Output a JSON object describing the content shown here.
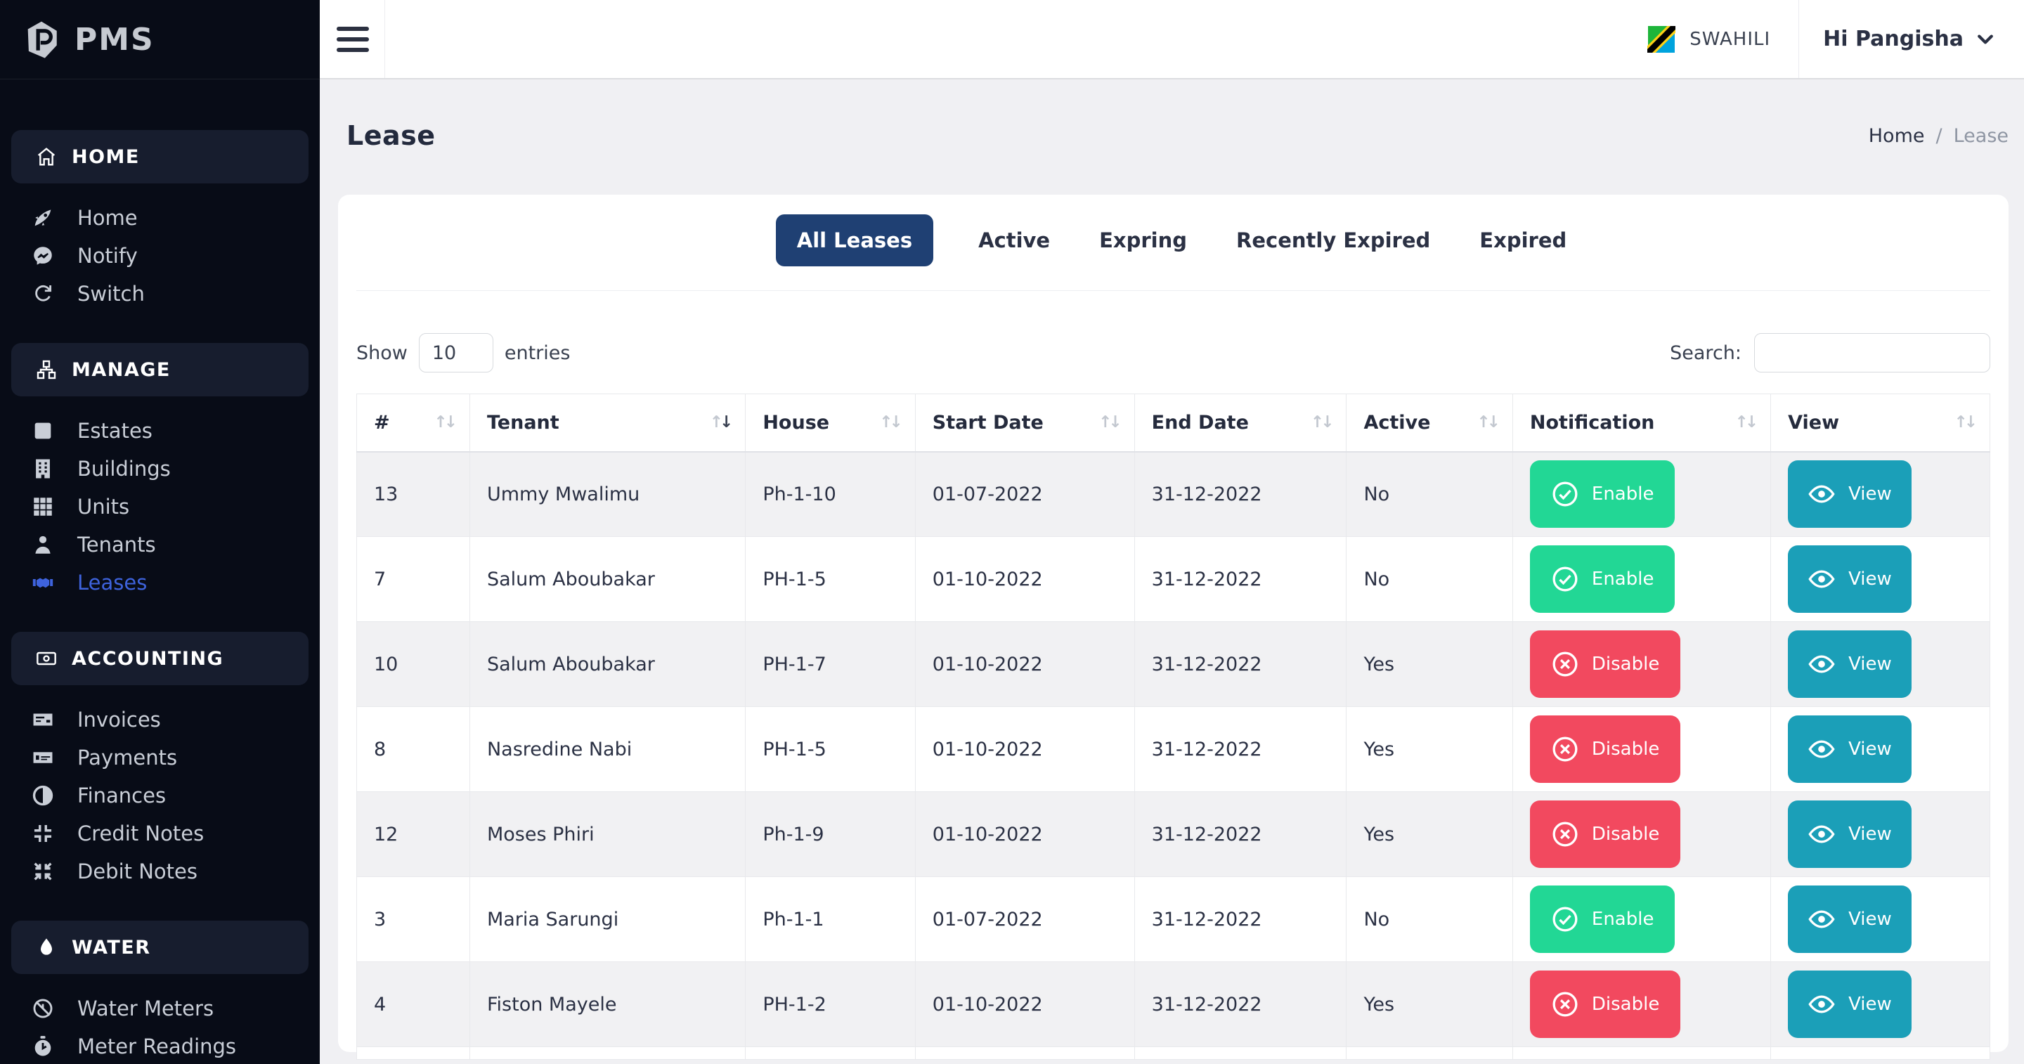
{
  "brand": {
    "name": "PMS"
  },
  "topbar": {
    "language": "SWAHILI",
    "user": "Hi Pangisha"
  },
  "sidebar": {
    "sections": [
      {
        "label": "HOME",
        "icon": "house-icon",
        "items": [
          {
            "label": "Home",
            "icon": "rocket-icon",
            "active": false
          },
          {
            "label": "Notify",
            "icon": "chat-icon",
            "active": false
          },
          {
            "label": "Switch",
            "icon": "refresh-icon",
            "active": false
          }
        ]
      },
      {
        "label": "MANAGE",
        "icon": "sitemap-icon",
        "items": [
          {
            "label": "Estates",
            "icon": "square-icon",
            "active": false
          },
          {
            "label": "Buildings",
            "icon": "building-icon",
            "active": false
          },
          {
            "label": "Units",
            "icon": "grid-icon",
            "active": false
          },
          {
            "label": "Tenants",
            "icon": "person-icon",
            "active": false
          },
          {
            "label": "Leases",
            "icon": "handshake-icon",
            "active": true
          }
        ]
      },
      {
        "label": "ACCOUNTING",
        "icon": "banknote-icon",
        "items": [
          {
            "label": "Invoices",
            "icon": "invoice-icon",
            "active": false
          },
          {
            "label": "Payments",
            "icon": "money-check-icon",
            "active": false
          },
          {
            "label": "Finances",
            "icon": "half-circle-icon",
            "active": false
          },
          {
            "label": "Credit Notes",
            "icon": "compress-icon",
            "active": false
          },
          {
            "label": "Debit Notes",
            "icon": "compress-arrows-icon",
            "active": false
          }
        ]
      },
      {
        "label": "WATER",
        "icon": "drop-icon",
        "items": [
          {
            "label": "Water Meters",
            "icon": "meter-icon",
            "active": false
          },
          {
            "label": "Meter Readings",
            "icon": "stopwatch-icon",
            "active": false
          }
        ]
      }
    ]
  },
  "page": {
    "title": "Lease",
    "breadcrumb": {
      "home": "Home",
      "separator": "/",
      "current": "Lease"
    }
  },
  "tabs": [
    {
      "label": "All Leases",
      "active": true
    },
    {
      "label": "Active",
      "active": false
    },
    {
      "label": "Expring",
      "active": false
    },
    {
      "label": "Recently Expired",
      "active": false
    },
    {
      "label": "Expired",
      "active": false
    }
  ],
  "controls": {
    "show_label": "Show",
    "entries_value": "10",
    "entries_label": "entries",
    "search_label": "Search:",
    "search_value": ""
  },
  "table": {
    "columns": [
      {
        "label": "#",
        "sort": "none"
      },
      {
        "label": "Tenant",
        "sort": "desc"
      },
      {
        "label": "House",
        "sort": "none"
      },
      {
        "label": "Start Date",
        "sort": "none"
      },
      {
        "label": "End Date",
        "sort": "none"
      },
      {
        "label": "Active",
        "sort": "none"
      },
      {
        "label": "Notification",
        "sort": "none"
      },
      {
        "label": "View",
        "sort": "none"
      }
    ],
    "view_label": "View",
    "rows": [
      {
        "id": "13",
        "tenant": "Ummy Mwalimu",
        "house": "Ph-1-10",
        "start": "01-07-2022",
        "end": "31-12-2022",
        "active": "No",
        "action": "Enable"
      },
      {
        "id": "7",
        "tenant": "Salum Aboubakar",
        "house": "PH-1-5",
        "start": "01-10-2022",
        "end": "31-12-2022",
        "active": "No",
        "action": "Enable"
      },
      {
        "id": "10",
        "tenant": "Salum Aboubakar",
        "house": "PH-1-7",
        "start": "01-10-2022",
        "end": "31-12-2022",
        "active": "Yes",
        "action": "Disable"
      },
      {
        "id": "8",
        "tenant": "Nasredine Nabi",
        "house": "PH-1-5",
        "start": "01-10-2022",
        "end": "31-12-2022",
        "active": "Yes",
        "action": "Disable"
      },
      {
        "id": "12",
        "tenant": "Moses Phiri",
        "house": "Ph-1-9",
        "start": "01-10-2022",
        "end": "31-12-2022",
        "active": "Yes",
        "action": "Disable"
      },
      {
        "id": "3",
        "tenant": "Maria Sarungi",
        "house": "Ph-1-1",
        "start": "01-07-2022",
        "end": "31-12-2022",
        "active": "No",
        "action": "Enable"
      },
      {
        "id": "4",
        "tenant": "Fiston Mayele",
        "house": "PH-1-2",
        "start": "01-10-2022",
        "end": "31-12-2022",
        "active": "Yes",
        "action": "Disable"
      }
    ]
  },
  "colors": {
    "sidebar_bg": "#080c17",
    "active_link": "#3e63dd",
    "tab_active_bg": "#1f4073",
    "enable_green": "#22d795",
    "disable_red": "#f2495f",
    "view_teal": "#1b9fb8"
  }
}
